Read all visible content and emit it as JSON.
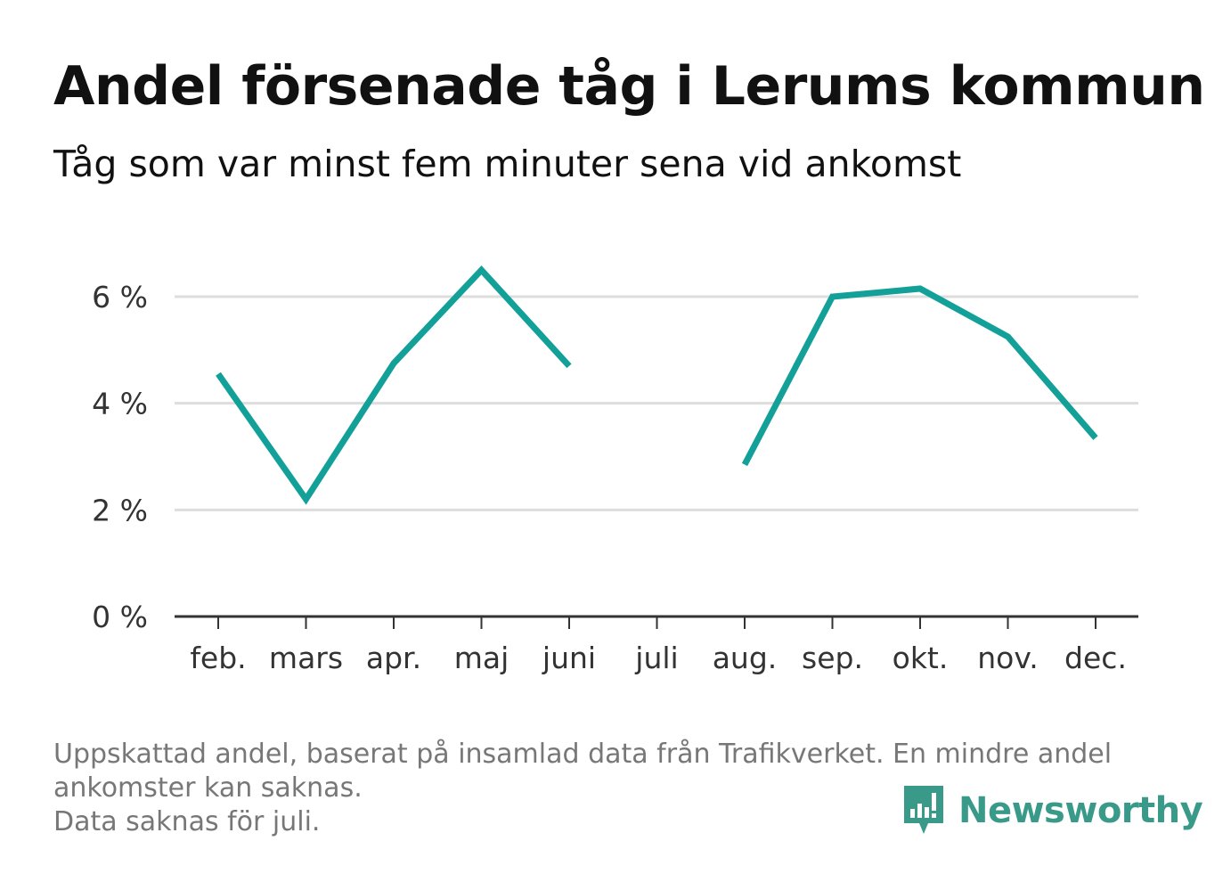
{
  "header": {
    "title": "Andel försenade tåg i Lerums kommun",
    "subtitle": "Tåg som var minst fem minuter sena vid ankomst"
  },
  "chart_data": {
    "type": "line",
    "title": "Andel försenade tåg i Lerums kommun",
    "subtitle": "Tåg som var minst fem minuter sena vid ankomst",
    "xlabel": "",
    "ylabel": "",
    "categories": [
      "feb.",
      "mars",
      "apr.",
      "maj",
      "juni",
      "juli",
      "aug.",
      "sep.",
      "okt.",
      "nov.",
      "dec."
    ],
    "series": [
      {
        "name": "Andel försenade tåg",
        "values": [
          4.55,
          2.2,
          4.75,
          6.5,
          4.7,
          null,
          2.85,
          6.0,
          6.15,
          5.25,
          3.35
        ]
      }
    ],
    "y_ticks": [
      {
        "value": 0,
        "label": "0 %"
      },
      {
        "value": 2,
        "label": "2 %"
      },
      {
        "value": 4,
        "label": "4 %"
      },
      {
        "value": 6,
        "label": "6 %"
      }
    ],
    "ylim": [
      0,
      7
    ],
    "grid": true,
    "colors": {
      "line": "#12a099",
      "grid": "#dddddd",
      "axis": "#333333"
    }
  },
  "footer": {
    "notes": [
      "Uppskattad andel, baserat på insamlad data från Trafikverket. En mindre andel",
      "ankomster kan saknas.",
      "Data saknas för juli."
    ],
    "brand": {
      "name": "Newsworthy",
      "icon": "newsworthy-logo-icon",
      "color": "#3a9a8a"
    }
  }
}
